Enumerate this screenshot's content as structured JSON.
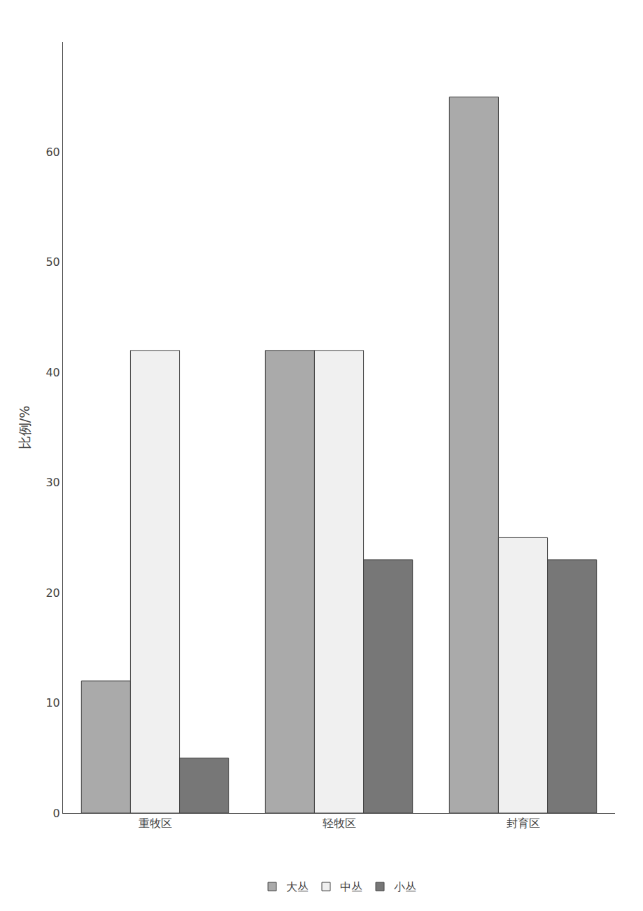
{
  "chart_data": {
    "type": "bar",
    "categories": [
      "重牧区",
      "轻牧区",
      "封育区"
    ],
    "series": [
      {
        "name": "大丛",
        "color": "#aaaaaa",
        "values": [
          12,
          42,
          65
        ]
      },
      {
        "name": "中丛",
        "color": "#f0f0f0",
        "values": [
          42,
          42,
          25
        ]
      },
      {
        "name": "小丛",
        "color": "#777777",
        "values": [
          5,
          23,
          23
        ]
      }
    ],
    "ylabel": "比例/%",
    "ylim": [
      0,
      70
    ],
    "yticks": [
      0,
      10,
      20,
      30,
      40,
      50,
      60
    ],
    "grid": false,
    "legend": "bottom"
  }
}
